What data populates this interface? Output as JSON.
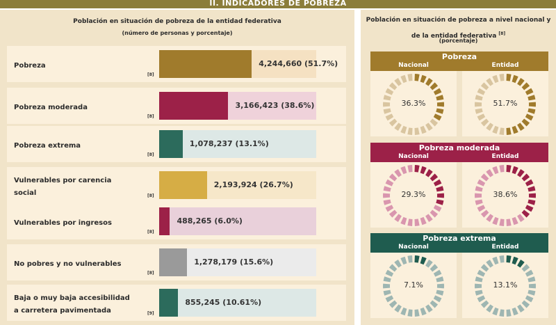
{
  "banner": {
    "title": "II. INDICADORES DE POBREZA"
  },
  "left": {
    "title": "Población en situación de pobreza de la entidad federativa",
    "subtitle": "(número de personas y porcentaje)",
    "rows": [
      {
        "label": "Pobreza",
        "ref": "[8]",
        "value": "4,244,660 (51.7%)",
        "percent": 51.7,
        "color": "#a07b2c",
        "track": "#f5e1c2"
      },
      {
        "label": "Pobreza moderada",
        "ref": "[8]",
        "value": "3,166,423 (38.6%)",
        "percent": 38.6,
        "color": "#9c2148",
        "track": "#efd2da"
      },
      {
        "label": "Pobreza extrema",
        "ref": "[8]",
        "value": "1,078,237 (13.1%)",
        "percent": 13.1,
        "color": "#2c6b5c",
        "track": "#dde8e6"
      },
      {
        "label": "Vulnerables por carencia social",
        "ref": "[8]",
        "value": "2,193,924 (26.7%)",
        "percent": 26.7,
        "color": "#d6ad45",
        "track": "#f6e7c9"
      },
      {
        "label": "Vulnerables por ingresos",
        "ref": "[8]",
        "value": "488,265 (6.0%)",
        "percent": 6.0,
        "color": "#9c2148",
        "track": "#e9d0da"
      },
      {
        "label": "No pobres y no vulnerables",
        "ref": "[8]",
        "value": "1,278,179 (15.6%)",
        "percent": 15.6,
        "color": "#9a9a9a",
        "track": "#ebebeb"
      },
      {
        "label": "Baja o muy baja accesibilidad a carretera pavimentada",
        "ref": "[9]",
        "value": "855,245 (10.61%)",
        "percent": 10.61,
        "color": "#2c6b5c",
        "track": "#dde8e6"
      }
    ]
  },
  "right": {
    "title": "Población en situación de pobreza a nivel nacional y de la entidad federativa",
    "title_ref": "[8]",
    "subtitle": "(porcentaje)",
    "groups": [
      {
        "title": "Pobreza",
        "color": "#a07b2c",
        "light": "#d9c5a0",
        "nacional_label": "Nacional",
        "entidad_label": "Entidad",
        "nacional_value": "36.3%",
        "nacional_pct": 36.3,
        "entidad_value": "51.7%",
        "entidad_pct": 51.7
      },
      {
        "title": "Pobreza moderada",
        "color": "#9c2148",
        "light": "#d996ae",
        "nacional_label": "Nacional",
        "entidad_label": "Entidad",
        "nacional_value": "29.3%",
        "nacional_pct": 29.3,
        "entidad_value": "38.6%",
        "entidad_pct": 38.6
      },
      {
        "title": "Pobreza extrema",
        "color": "#1f5c4f",
        "light": "#9eb6b2",
        "nacional_label": "Nacional",
        "entidad_label": "Entidad",
        "nacional_value": "7.1%",
        "nacional_pct": 7.1,
        "entidad_value": "13.1%",
        "entidad_pct": 13.1
      }
    ]
  }
}
